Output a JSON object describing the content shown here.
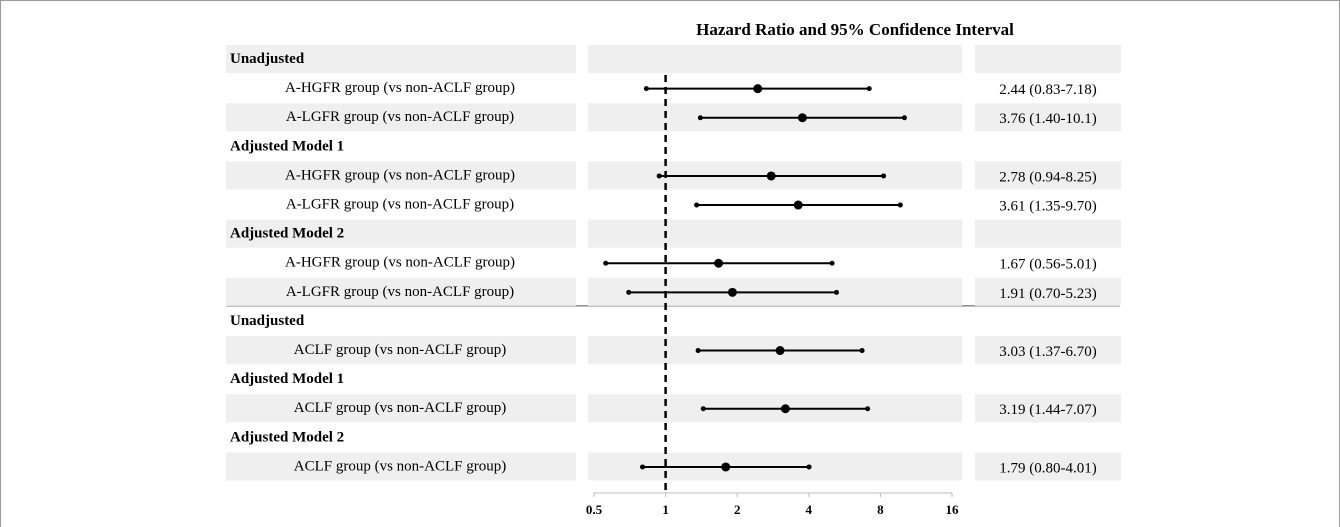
{
  "chart_data": {
    "type": "forest",
    "title": "Hazard Ratio and 95% Confidence Interval",
    "xscale": "log",
    "xlim": [
      0.5,
      16
    ],
    "xticks": [
      0.5,
      1,
      2,
      4,
      8,
      16
    ],
    "reference_line": 1,
    "color": "#000000",
    "sections": [
      {
        "groups": [
          {
            "name": "Unadjusted",
            "rows": [
              {
                "label": "A-HGFR group (vs non-ACLF group)",
                "hr": 2.44,
                "lo": 0.83,
                "hi": 7.18,
                "value_label": "2.44 (0.83-7.18)"
              },
              {
                "label": "A-LGFR group (vs non-ACLF group)",
                "hr": 3.76,
                "lo": 1.4,
                "hi": 10.1,
                "value_label": "3.76 (1.40-10.1)"
              }
            ]
          },
          {
            "name": "Adjusted Model 1",
            "rows": [
              {
                "label": "A-HGFR group (vs non-ACLF group)",
                "hr": 2.78,
                "lo": 0.94,
                "hi": 8.25,
                "value_label": "2.78 (0.94-8.25)"
              },
              {
                "label": "A-LGFR group (vs non-ACLF group)",
                "hr": 3.61,
                "lo": 1.35,
                "hi": 9.7,
                "value_label": "3.61 (1.35-9.70)"
              }
            ]
          },
          {
            "name": "Adjusted Model 2",
            "rows": [
              {
                "label": "A-HGFR group (vs non-ACLF group)",
                "hr": 1.67,
                "lo": 0.56,
                "hi": 5.01,
                "value_label": "1.67 (0.56-5.01)"
              },
              {
                "label": "A-LGFR group (vs non-ACLF group)",
                "hr": 1.91,
                "lo": 0.7,
                "hi": 5.23,
                "value_label": "1.91 (0.70-5.23)"
              }
            ]
          }
        ]
      },
      {
        "groups": [
          {
            "name": "Unadjusted",
            "rows": [
              {
                "label": "ACLF group (vs non-ACLF group)",
                "hr": 3.03,
                "lo": 1.37,
                "hi": 6.7,
                "value_label": "3.03 (1.37-6.70)"
              }
            ]
          },
          {
            "name": "Adjusted Model 1",
            "rows": [
              {
                "label": "ACLF group (vs non-ACLF group)",
                "hr": 3.19,
                "lo": 1.44,
                "hi": 7.07,
                "value_label": "3.19 (1.44-7.07)"
              }
            ]
          },
          {
            "name": "Adjusted Model 2",
            "rows": [
              {
                "label": "ACLF group (vs non-ACLF group)",
                "hr": 1.79,
                "lo": 0.8,
                "hi": 4.01,
                "value_label": "1.79 (0.80-4.01)"
              }
            ]
          }
        ]
      }
    ]
  }
}
